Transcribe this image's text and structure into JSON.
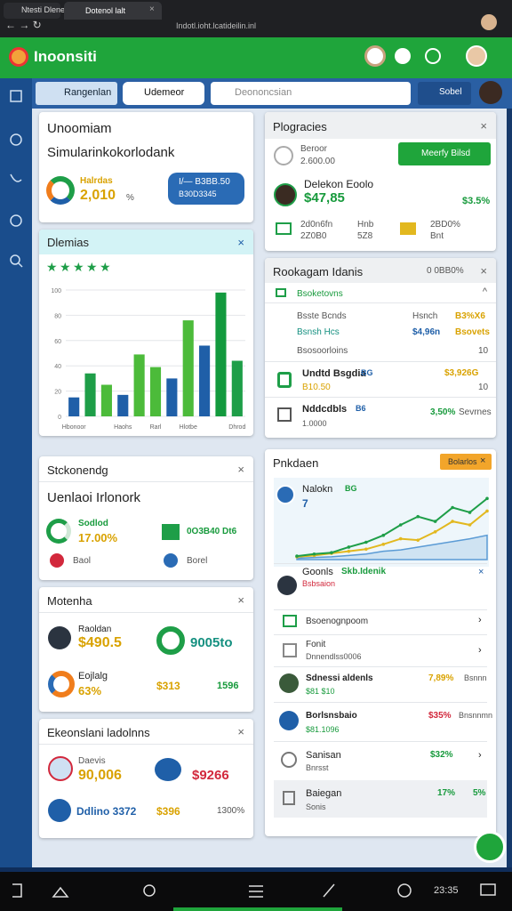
{
  "browser": {
    "tabs": [
      "Ntesti Dlenei",
      "Dotenol lalt"
    ],
    "url": "Indotl.ioht.lcatideilin.inl"
  },
  "header": {
    "title": "Inoonsiti"
  },
  "toolbar": {
    "button": "Rangenlan",
    "dropdown": "Udemeor",
    "search": "Deononcsian",
    "action": "Sobel"
  },
  "overview": {
    "title": "Unoomiam",
    "subtitle": "Simularinkokorlodank",
    "label": "Halrdas",
    "value": "2,010",
    "unit": "%",
    "button": [
      "I/— B3BB.50",
      "B30D3345"
    ]
  },
  "chart": {
    "type": "bar",
    "title": "Dlemias",
    "rating": 5,
    "categories": [
      "Hbonoor",
      null,
      null,
      "Haohs",
      null,
      "Rarl",
      null,
      "Hlotbe",
      null,
      null,
      "Dhrod"
    ],
    "values": [
      15,
      34,
      25,
      17,
      49,
      39,
      30,
      76,
      56,
      98,
      44
    ],
    "colors": [
      "#1f5fa8",
      "#1e9e48",
      "#4cbb3a",
      "#1f5fa8",
      "#4cbb3a",
      "#4cbb3a",
      "#1f5fa8",
      "#4cbb3a",
      "#1f5fa8",
      "#139a3e",
      "#1e9e48"
    ],
    "ylim": [
      0,
      100
    ],
    "yticks": [
      0,
      20,
      40,
      60,
      80,
      100
    ],
    "grid": true
  },
  "stock": {
    "title": "Stckonendg",
    "subtitle": "Uenlaoi Irlonork",
    "label": "Sodlod",
    "value": "17.00%",
    "side": "0O3B40 Dt6",
    "left": "Baol",
    "right": "Borel"
  },
  "month": {
    "title": "Motenha",
    "a_label": "Raoldan",
    "a_value": "$490.5",
    "ring": "9005to",
    "b_label": "Eojlalg",
    "b_value": "63%",
    "c": "$313",
    "d": "1596"
  },
  "exp": {
    "title": "Ekeonslani ladolnns",
    "a_label": "Daevis",
    "a_value": "90,006",
    "b": "$9266",
    "c": "Ddlino 3372",
    "d": "$396",
    "e": "1300%"
  },
  "progress": {
    "title": "Plogracies",
    "a_label": "Beroor",
    "a_value": "2.600.00",
    "button": "Meerfy Bilsd",
    "name": "Delekon Eoolo",
    "amount": "$47,85",
    "pct": "$3.5%",
    "row": [
      [
        "2d0n6fn",
        "2Z0B0"
      ],
      [
        "Hnb",
        "5Z8"
      ],
      [
        "2BD0%",
        "Bnt"
      ]
    ]
  },
  "ranking": {
    "title": "Rookagam Idanis",
    "meta": "0 0BB0%",
    "section": "Bsoketovns",
    "rows": [
      [
        "Bsste Bcnds",
        "Hsnch",
        "B3%X6"
      ],
      [
        "Bsnsh Hcs",
        "$4,96n",
        "Bsovets"
      ],
      [
        "Bsosoorloins",
        "10"
      ]
    ],
    "items": [
      [
        "Undtd Bsgdia",
        "BG",
        "$3,926G",
        "B10.50",
        "10"
      ],
      [
        "Nddcdbls",
        "B6",
        "3,50%",
        "Sevrnes",
        "1.0000"
      ]
    ]
  },
  "panel": {
    "title": "Pnkdaen",
    "badge": "Bolarlos",
    "name": "Nalokn",
    "tag": "BG",
    "count": "7",
    "lines": {
      "type": "line",
      "ylim": [
        0,
        100
      ],
      "series": [
        {
          "color": "#cfe3f2",
          "values": [
            2,
            3,
            4,
            6,
            8,
            12,
            14,
            18,
            22,
            26,
            30,
            35
          ]
        },
        {
          "color": "#e2b81f",
          "values": [
            4,
            6,
            9,
            12,
            15,
            22,
            30,
            28,
            40,
            55,
            50,
            70
          ]
        },
        {
          "color": "#1e9e48",
          "values": [
            5,
            8,
            10,
            18,
            25,
            35,
            50,
            62,
            55,
            75,
            68,
            88
          ]
        }
      ]
    },
    "person": [
      "Goonls",
      "Skb.Idenik",
      "Bsbsaion"
    ],
    "list": [
      [
        "Bsoenognpoom"
      ],
      [
        "Fonit",
        "Dnnendlss0006"
      ],
      [
        "Sdnessi aldenls",
        "$81 $10",
        "7,89%",
        "Bsnnn"
      ],
      [
        "Borlsnsbaio",
        "$81.1096",
        "$35%",
        "Bnsnnmn"
      ],
      [
        "Sanisan",
        "Bnrsst",
        "$32%"
      ],
      [
        "Baiegan",
        "Sonis",
        "17%",
        "5%"
      ]
    ]
  },
  "status": {
    "time": "23:35"
  }
}
